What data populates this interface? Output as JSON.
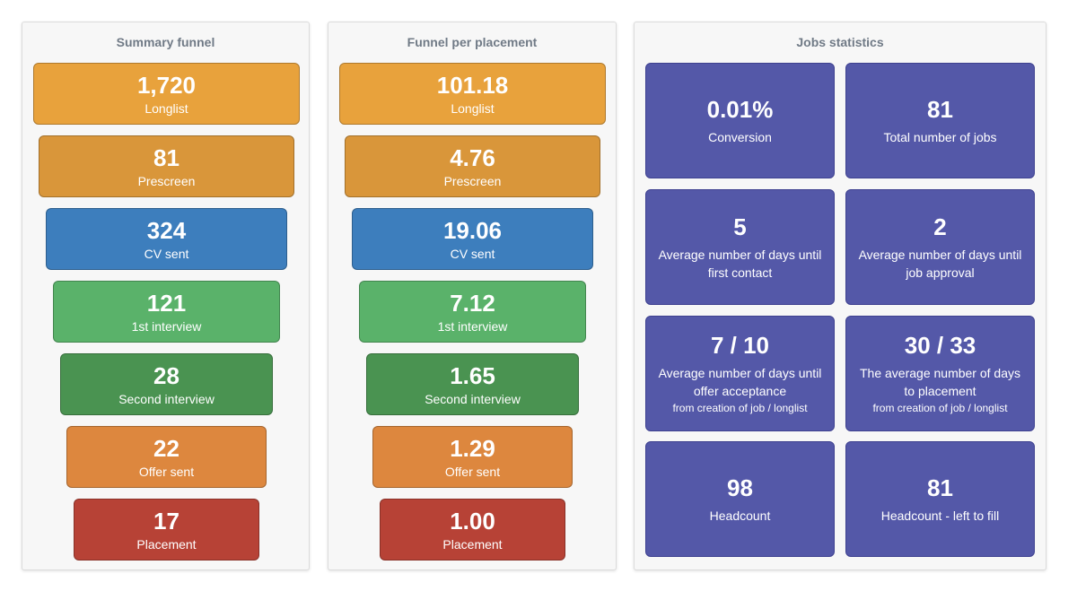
{
  "colors": {
    "longlist": "#e8a23c",
    "prescreen": "#d9963a",
    "cv_sent": "#3d7ebd",
    "first_interview": "#5ab26a",
    "second_interview": "#4a9351",
    "offer_sent": "#dd873e",
    "placement": "#b74236",
    "tile": "#5458a8"
  },
  "summary": {
    "title": "Summary funnel",
    "stages": [
      {
        "value": "1,720",
        "label": "Longlist"
      },
      {
        "value": "81",
        "label": "Prescreen"
      },
      {
        "value": "324",
        "label": "CV sent"
      },
      {
        "value": "121",
        "label": "1st interview"
      },
      {
        "value": "28",
        "label": "Second interview"
      },
      {
        "value": "22",
        "label": "Offer sent"
      },
      {
        "value": "17",
        "label": "Placement"
      }
    ]
  },
  "per_placement": {
    "title": "Funnel per placement",
    "stages": [
      {
        "value": "101.18",
        "label": "Longlist"
      },
      {
        "value": "4.76",
        "label": "Prescreen"
      },
      {
        "value": "19.06",
        "label": "CV sent"
      },
      {
        "value": "7.12",
        "label": "1st interview"
      },
      {
        "value": "1.65",
        "label": "Second interview"
      },
      {
        "value": "1.29",
        "label": "Offer sent"
      },
      {
        "value": "1.00",
        "label": "Placement"
      }
    ]
  },
  "jobs": {
    "title": "Jobs statistics",
    "tiles": [
      {
        "value": "0.01%",
        "label": "Conversion",
        "sub": ""
      },
      {
        "value": "81",
        "label": "Total number of jobs",
        "sub": ""
      },
      {
        "value": "5",
        "label": "Average number of days until first contact",
        "sub": ""
      },
      {
        "value": "2",
        "label": "Average number of days until job approval",
        "sub": ""
      },
      {
        "value": "7 / 10",
        "label": "Average number of days until offer acceptance",
        "sub": "from creation of job / longlist"
      },
      {
        "value": "30 / 33",
        "label": "The average number of days to placement",
        "sub": "from creation of job / longlist"
      },
      {
        "value": "98",
        "label": "Headcount",
        "sub": ""
      },
      {
        "value": "81",
        "label": "Headcount - left to fill",
        "sub": ""
      }
    ]
  }
}
